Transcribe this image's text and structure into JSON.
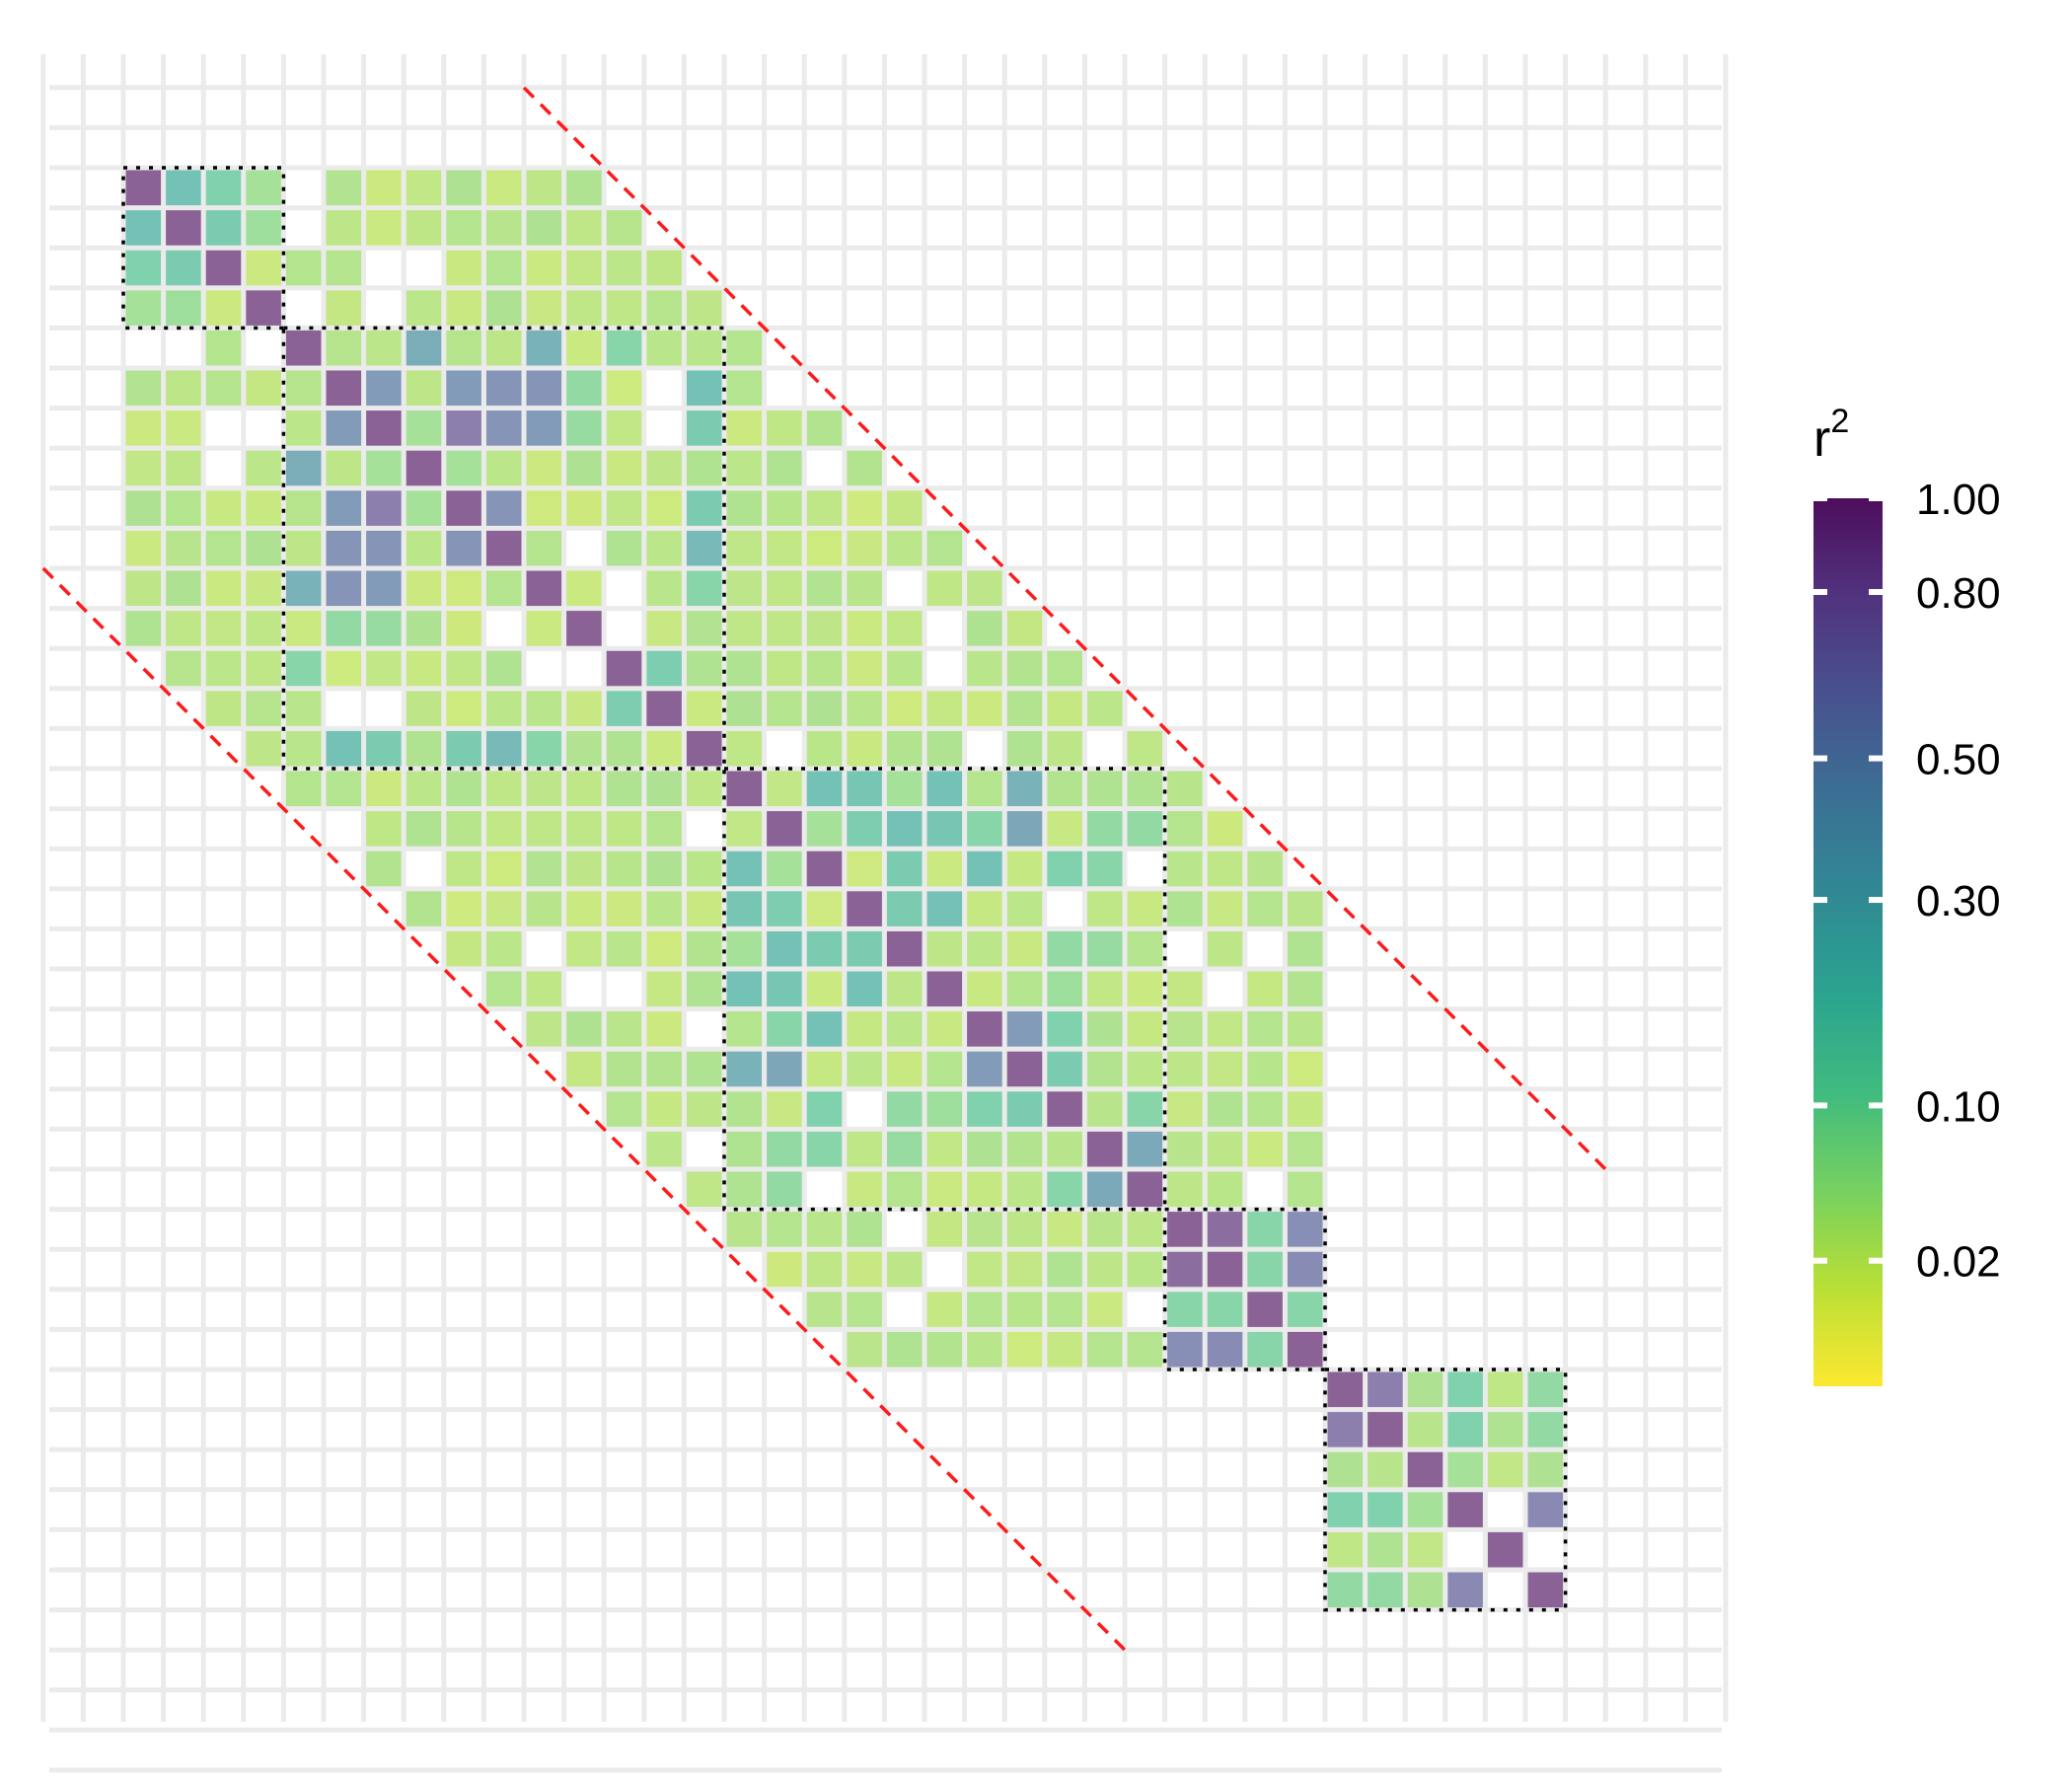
{
  "chart_data": {
    "type": "heatmap",
    "title": "",
    "xlabel": "",
    "ylabel": "",
    "n": 38,
    "grid": true,
    "legend": {
      "title": "r",
      "title_superscript": "2",
      "position": "right",
      "ticks": [
        {
          "value": 1.0,
          "label": "1.00"
        },
        {
          "value": 0.8,
          "label": "0.80"
        },
        {
          "value": 0.5,
          "label": "0.50"
        },
        {
          "value": 0.3,
          "label": "0.30"
        },
        {
          "value": 0.1,
          "label": "0.10"
        },
        {
          "value": 0.02,
          "label": "0.02"
        }
      ],
      "colormap": [
        "#fde725",
        "#b5de2b",
        "#6ece58",
        "#35b779",
        "#1f9e89",
        "#26828e",
        "#31688e",
        "#3e4989",
        "#482878",
        "#440154"
      ]
    },
    "blocks": [
      [
        2,
        5
      ],
      [
        6,
        16
      ],
      [
        17,
        27
      ],
      [
        28,
        31
      ],
      [
        32,
        37
      ]
    ],
    "band_lines": [
      {
        "start": [
          12,
          0
        ],
        "end": [
          39,
          27
        ]
      },
      {
        "start": [
          0,
          12
        ],
        "end": [
          27,
          39
        ]
      }
    ],
    "strong_pairs": [
      [
        2,
        3,
        0.2
      ],
      [
        2,
        4,
        0.12
      ],
      [
        3,
        4,
        0.15
      ],
      [
        2,
        5,
        0.05
      ],
      [
        3,
        5,
        0.06
      ],
      [
        7,
        8,
        0.5
      ],
      [
        7,
        10,
        0.5
      ],
      [
        7,
        11,
        0.3
      ],
      [
        7,
        12,
        0.55
      ],
      [
        8,
        9,
        0.05
      ],
      [
        8,
        10,
        0.75
      ],
      [
        8,
        11,
        0.55
      ],
      [
        8,
        12,
        0.3
      ],
      [
        6,
        9,
        0.35
      ],
      [
        9,
        10,
        0.05
      ],
      [
        10,
        11,
        0.55
      ],
      [
        7,
        13,
        0.08
      ],
      [
        8,
        13,
        0.07
      ],
      [
        6,
        14,
        0.1
      ],
      [
        15,
        14,
        0.14
      ],
      [
        7,
        16,
        0.2
      ],
      [
        8,
        16,
        0.15
      ],
      [
        10,
        16,
        0.15
      ],
      [
        12,
        16,
        0.1
      ],
      [
        11,
        16,
        0.25
      ],
      [
        12,
        6,
        0.3
      ],
      [
        11,
        7,
        0.55
      ],
      [
        12,
        8,
        0.5
      ],
      [
        13,
        9,
        0.04
      ],
      [
        19,
        17,
        0.2
      ],
      [
        20,
        18,
        0.14
      ],
      [
        21,
        19,
        0.08
      ],
      [
        23,
        24,
        0.5
      ],
      [
        21,
        20,
        0.15
      ],
      [
        21,
        19,
        0.15
      ],
      [
        22,
        20,
        0.2
      ],
      [
        23,
        19,
        0.2
      ],
      [
        24,
        18,
        0.4
      ],
      [
        24,
        17,
        0.3
      ],
      [
        25,
        19,
        0.12
      ],
      [
        25,
        23,
        0.12
      ],
      [
        25,
        24,
        0.15
      ],
      [
        26,
        18,
        0.08
      ],
      [
        26,
        19,
        0.1
      ],
      [
        27,
        18,
        0.08
      ],
      [
        27,
        26,
        0.38
      ],
      [
        27,
        25,
        0.1
      ],
      [
        20,
        17,
        0.18
      ],
      [
        19,
        18,
        0.05
      ],
      [
        22,
        17,
        0.2
      ],
      [
        23,
        18,
        0.1
      ],
      [
        21,
        17,
        0.05
      ],
      [
        21,
        18,
        0.2
      ],
      [
        22,
        18,
        0.18
      ],
      [
        25,
        21,
        0.08
      ],
      [
        26,
        21,
        0.07
      ],
      [
        25,
        22,
        0.06
      ],
      [
        28,
        29,
        0.9
      ],
      [
        28,
        30,
        0.1
      ],
      [
        29,
        30,
        0.1
      ],
      [
        28,
        31,
        0.6
      ],
      [
        29,
        31,
        0.62
      ],
      [
        30,
        31,
        0.1
      ],
      [
        32,
        33,
        0.75
      ],
      [
        32,
        34,
        0.04
      ],
      [
        33,
        34,
        0.03
      ],
      [
        32,
        35,
        0.12
      ],
      [
        33,
        35,
        0.12
      ],
      [
        34,
        35,
        0.05
      ],
      [
        35,
        36,
        0.0
      ],
      [
        32,
        37,
        0.08
      ],
      [
        33,
        37,
        0.08
      ],
      [
        34,
        37,
        0.04
      ],
      [
        35,
        37,
        0.65
      ],
      [
        36,
        37,
        0.0
      ]
    ]
  }
}
